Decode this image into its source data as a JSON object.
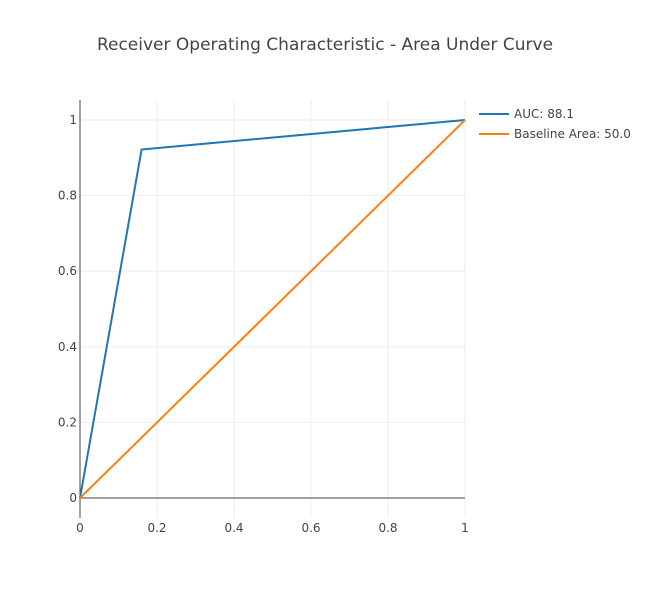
{
  "chart_data": {
    "type": "line",
    "title": "Receiver Operating Characteristic - Area Under Curve",
    "xlabel": "",
    "ylabel": "",
    "xlim": [
      0,
      1
    ],
    "ylim": [
      0,
      1
    ],
    "x_ticks": [
      0,
      0.2,
      0.4,
      0.6,
      0.8,
      1
    ],
    "y_ticks": [
      0,
      0.2,
      0.4,
      0.6,
      0.8,
      1
    ],
    "x_tick_labels": [
      "0",
      "0.2",
      "0.4",
      "0.6",
      "0.8",
      "1"
    ],
    "y_tick_labels": [
      "0",
      "0.2",
      "0.4",
      "0.6",
      "0.8",
      "1"
    ],
    "grid": true,
    "legend_position": "top-right",
    "series": [
      {
        "name": "AUC: 88.1",
        "color": "#1f77b4",
        "x": [
          0,
          0.16,
          1
        ],
        "y": [
          0,
          0.922,
          1
        ]
      },
      {
        "name": "Baseline Area: 50.0",
        "color": "#ff7f0e",
        "x": [
          0,
          1
        ],
        "y": [
          0,
          1
        ]
      }
    ]
  }
}
